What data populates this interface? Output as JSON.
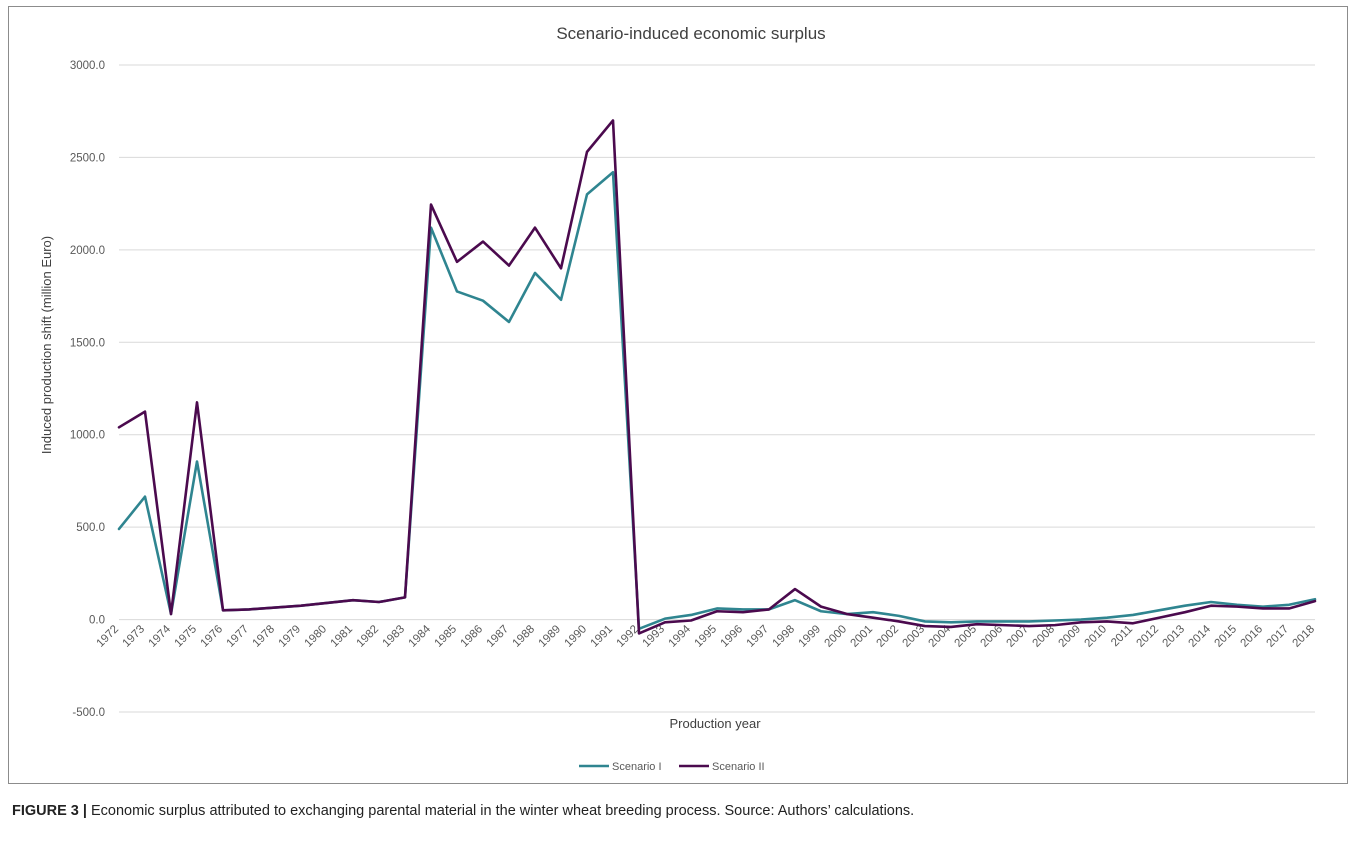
{
  "chart_data": {
    "type": "line",
    "title": "Scenario-induced economic surplus",
    "xlabel": "Production year",
    "ylabel": "Induced production shift (million Euro)",
    "ylim": [
      -500,
      3000
    ],
    "yticks": [
      "3000.0",
      "2500.0",
      "2000.0",
      "1500.0",
      "1000.0",
      "500.0",
      "0.0",
      "-500.0"
    ],
    "grid": true,
    "legend_position": "bottom",
    "categories": [
      "1972",
      "1973",
      "1974",
      "1975",
      "1976",
      "1977",
      "1978",
      "1979",
      "1980",
      "1981",
      "1982",
      "1983",
      "1984",
      "1985",
      "1986",
      "1987",
      "1988",
      "1989",
      "1990",
      "1991",
      "1992",
      "1993",
      "1994",
      "1995",
      "1996",
      "1997",
      "1998",
      "1999",
      "2000",
      "2001",
      "2002",
      "2003",
      "2004",
      "2005",
      "2006",
      "2007",
      "2008",
      "2009",
      "2010",
      "2011",
      "2012",
      "2013",
      "2014",
      "2015",
      "2016",
      "2017",
      "2018"
    ],
    "series": [
      {
        "name": "Scenario I",
        "color": "#2f8590",
        "values": [
          490,
          665,
          30,
          855,
          50,
          55,
          65,
          75,
          90,
          105,
          95,
          120,
          2120,
          1775,
          1725,
          1610,
          1875,
          1730,
          2300,
          2420,
          -50,
          5,
          25,
          60,
          55,
          55,
          105,
          45,
          30,
          40,
          20,
          -10,
          -15,
          -10,
          -10,
          -10,
          -5,
          0,
          10,
          25,
          50,
          75,
          95,
          80,
          70,
          80,
          110
        ]
      },
      {
        "name": "Scenario II",
        "color": "#4b0a4e",
        "values": [
          1040,
          1125,
          30,
          1175,
          50,
          55,
          65,
          75,
          90,
          105,
          95,
          120,
          2245,
          1935,
          2045,
          1915,
          2120,
          1900,
          2530,
          2700,
          -75,
          -15,
          -5,
          45,
          40,
          55,
          165,
          70,
          30,
          10,
          -10,
          -35,
          -40,
          -25,
          -30,
          -35,
          -30,
          -15,
          -10,
          -20,
          10,
          40,
          75,
          70,
          60,
          60,
          100
        ]
      }
    ]
  },
  "caption": {
    "label": "FIGURE 3 |",
    "text": " Economic surplus attributed to exchanging parental material in the winter wheat breeding process. Source: Authors’ calculations."
  }
}
